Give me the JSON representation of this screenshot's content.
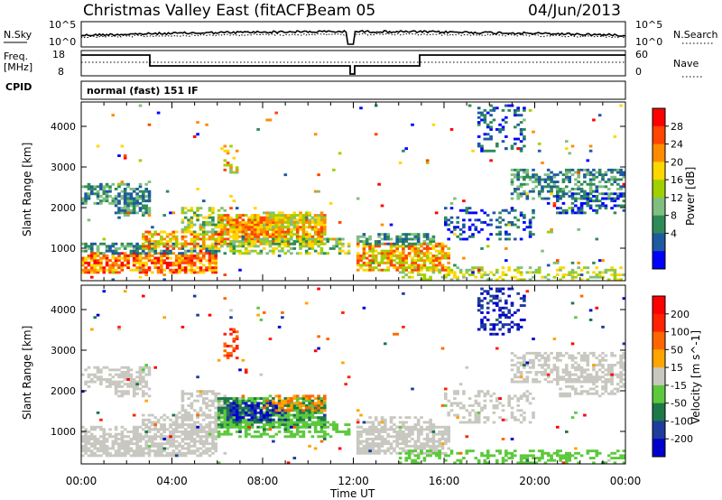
{
  "header": {
    "station": "Christmas Valley East (fitACF)",
    "beam": "Beam 05",
    "date": "04/Jun/2013"
  },
  "noise_panel": {
    "left_label": "N.Sky",
    "left_ticks": [
      "10^5",
      "10^0"
    ],
    "right_label": "N.Search",
    "right_ticks": [
      "10^5",
      "10^0"
    ]
  },
  "freq_panel": {
    "left_label_top": "Freq.",
    "left_label_bottom": "[MHz]",
    "left_ticks": [
      "18",
      "8"
    ],
    "right_label": "Nave",
    "right_ticks": [
      "60",
      "0"
    ]
  },
  "cpid": {
    "label": "CPID",
    "value": "normal (fast) 151 IF"
  },
  "colors": {
    "power_scale": [
      "#0000ff",
      "#1e5aa0",
      "#2e8b57",
      "#7fbf7f",
      "#a0d000",
      "#ffd700",
      "#ff8c00",
      "#ff4500",
      "#ff0000"
    ],
    "velocity_scale": [
      "#0000cc",
      "#1e3c9c",
      "#1e7848",
      "#5cc93c",
      "#c8c8c0",
      "#ffa500",
      "#ff6600",
      "#ff2200",
      "#ff0000"
    ]
  },
  "chart_data": [
    {
      "type": "heatmap",
      "name": "Power",
      "ylabel": "Slant Range [km]",
      "yticks": [
        1000,
        2000,
        3000,
        4000
      ],
      "ylim": [
        200,
        4600
      ],
      "xlim": [
        0,
        24
      ],
      "colorbar": {
        "label": "Power [dB]",
        "ticks": [
          "28",
          "24",
          "20",
          "16",
          "12",
          "8",
          "4"
        ]
      }
    },
    {
      "type": "heatmap",
      "name": "Velocity",
      "ylabel": "Slant Range [km]",
      "xlabel": "Time UT",
      "xticks": [
        "00:00",
        "04:00",
        "08:00",
        "12:00",
        "16:00",
        "20:00",
        "00:00"
      ],
      "yticks": [
        1000,
        2000,
        3000,
        4000
      ],
      "ylim": [
        200,
        4600
      ],
      "xlim": [
        0,
        24
      ],
      "colorbar": {
        "label": "Velocity [m s^-1]",
        "ticks": [
          "200",
          "100",
          "50",
          "15",
          "-15",
          "-50",
          "-100",
          "-200"
        ]
      }
    }
  ]
}
